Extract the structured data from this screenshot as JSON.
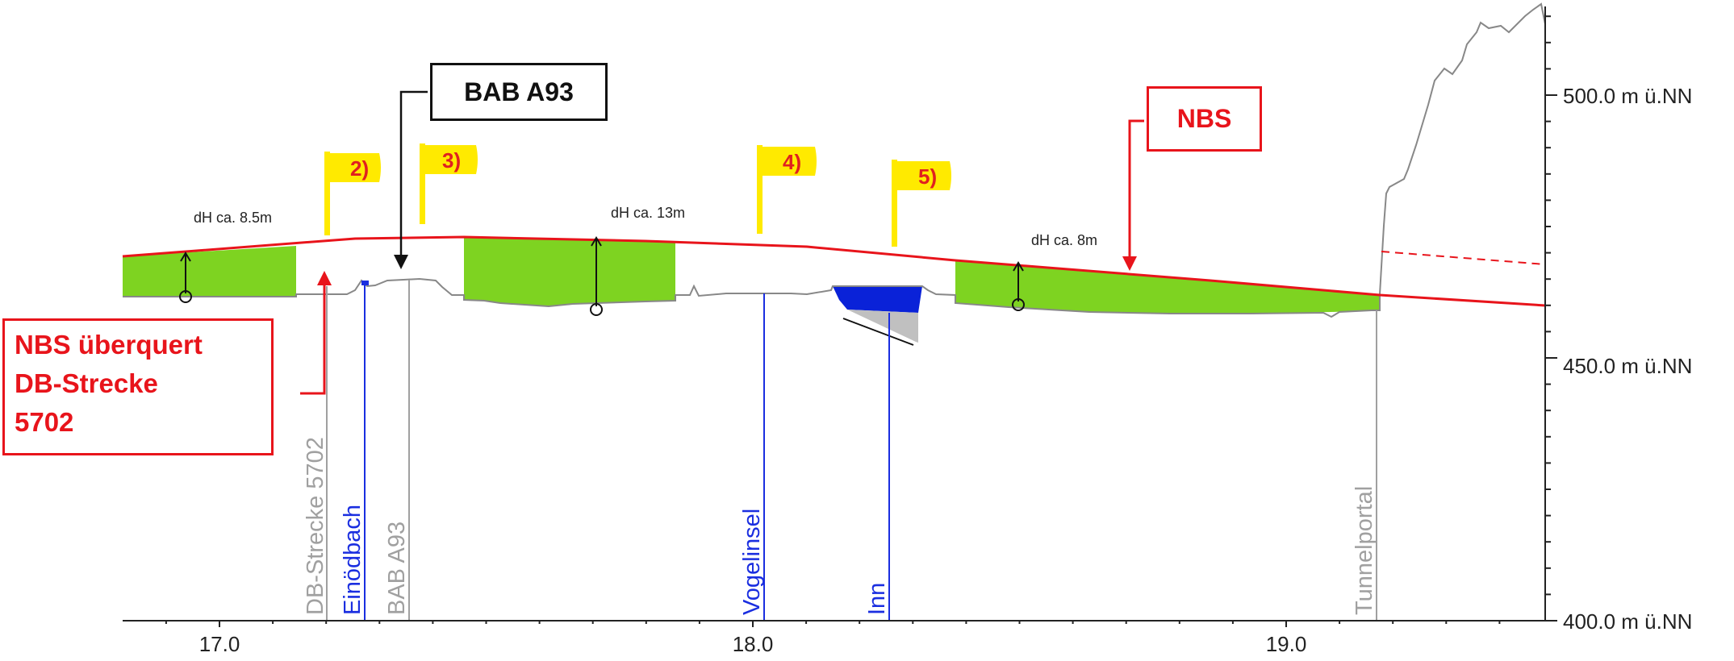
{
  "chart_data": {
    "type": "area",
    "x_tick_labels": [
      "17.0",
      "18.0",
      "19.0"
    ],
    "y_tick_labels": [
      "500.0 m ü.NN",
      "450.0 m ü.NN",
      "400.0 m ü.NN"
    ],
    "y_ticks": [
      500,
      450,
      400
    ],
    "x_ticks": [
      17.0,
      18.0,
      19.0
    ],
    "colors": {
      "nbs_line": "#e8141b",
      "fill_area": "#7ed321",
      "water": "#0a22d8",
      "terrain": "#888888",
      "label_blue": "#1a2ee0",
      "label_grey": "#a0a0a0",
      "flag": "#ffea00"
    },
    "height_labels": [
      "dH ca. 8.5m",
      "dH ca. 13m",
      "dH ca. 8m"
    ],
    "flags": [
      "2)",
      "3)",
      "4)",
      "5)"
    ],
    "vertical_labels": [
      {
        "text": "DB-Strecke 5702",
        "color": "grey"
      },
      {
        "text": "Einödbach",
        "color": "blue"
      },
      {
        "text": "BAB A93",
        "color": "grey"
      },
      {
        "text": "Vogelinsel",
        "color": "blue"
      },
      {
        "text": "Inn",
        "color": "blue"
      },
      {
        "text": "Tunnelportal",
        "color": "grey"
      }
    ]
  },
  "callouts": {
    "bab": "BAB A93",
    "nbs": "NBS",
    "crossing": [
      "NBS überquert",
      "DB-Strecke",
      "5702"
    ]
  }
}
